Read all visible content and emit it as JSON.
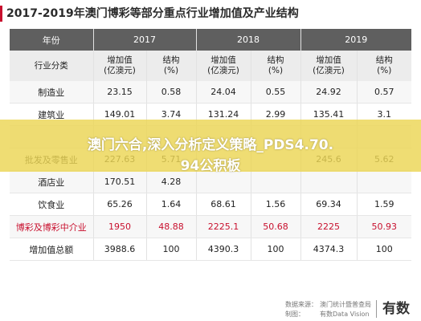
{
  "title": "2017-2019年澳门博彩等部分重点行业增加值及产业结构",
  "accent_color": "#c8102e",
  "table": {
    "corner_label": "年份",
    "years": [
      "2017",
      "2018",
      "2019"
    ],
    "sub_headers": {
      "category": "行业分类",
      "value": "增加值\n(亿澳元)",
      "structure": "结构\n(%)"
    },
    "rows": [
      {
        "category": "制造业",
        "v2017": "23.15",
        "s2017": "0.58",
        "v2018": "24.04",
        "s2018": "0.55",
        "v2019": "24.92",
        "s2019": "0.57",
        "highlight": false
      },
      {
        "category": "建筑业",
        "v2017": "149.01",
        "s2017": "3.74",
        "v2018": "131.24",
        "s2018": "2.99",
        "v2019": "135.41",
        "s2019": "3.1",
        "highlight": false
      },
      {
        "category": "",
        "v2017": "",
        "s2017": "",
        "v2018": "",
        "s2018": "",
        "v2019": "",
        "s2019": "",
        "highlight": false
      },
      {
        "category": "批发及零售业",
        "v2017": "227.63",
        "s2017": "5.71",
        "v2018": "",
        "s2018": "",
        "v2019": "245.6",
        "s2019": "5.62",
        "highlight": false
      },
      {
        "category": "酒店业",
        "v2017": "170.51",
        "s2017": "4.28",
        "v2018": "",
        "s2018": "",
        "v2019": "",
        "s2019": "",
        "highlight": false
      },
      {
        "category": "饮食业",
        "v2017": "65.26",
        "s2017": "1.64",
        "v2018": "68.61",
        "s2018": "1.56",
        "v2019": "69.34",
        "s2019": "1.59",
        "highlight": false
      },
      {
        "category": "博彩及博彩中介业",
        "v2017": "1950",
        "s2017": "48.88",
        "v2018": "2225.1",
        "s2018": "50.68",
        "v2019": "2225",
        "s2019": "50.93",
        "highlight": true
      },
      {
        "category": "增加值总额",
        "v2017": "3988.6",
        "s2017": "100",
        "v2018": "4390.3",
        "s2018": "100",
        "v2019": "4374.3",
        "s2019": "100",
        "highlight": false
      }
    ]
  },
  "banner": {
    "text_line1": "澳门六合,深入分析定义策略_PDS4.70.",
    "text_line2": "94公积板"
  },
  "footer": {
    "source_label": "数据来源：",
    "source_caption": "制图：",
    "org_line1": "澳门统计暨普查局",
    "org_line2": "有数Data Vision",
    "logo": "有数"
  }
}
